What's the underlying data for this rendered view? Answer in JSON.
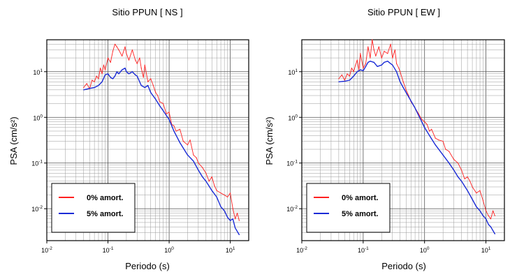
{
  "chart_data": [
    {
      "type": "line",
      "title": "Sitio PPUN [ NS ]",
      "xlabel": "Periodo (s)",
      "ylabel": "PSA (cm/s²)",
      "xscale": "log",
      "yscale": "log",
      "xlim": [
        0.01,
        20
      ],
      "ylim": [
        0.002,
        50
      ],
      "xticks": [
        {
          "base": "10",
          "exp": "-2"
        },
        {
          "base": "10",
          "exp": "-1"
        },
        {
          "base": "10",
          "exp": "0"
        },
        {
          "base": "10",
          "exp": "1"
        }
      ],
      "yticks": [
        {
          "base": "10",
          "exp": "-2"
        },
        {
          "base": "10",
          "exp": "-1"
        },
        {
          "base": "10",
          "exp": "0"
        },
        {
          "base": "10",
          "exp": "1"
        }
      ],
      "grid": true,
      "legend_position": "bottom-left",
      "series": [
        {
          "name": "0% amort.",
          "color": "#ff2020",
          "x": [
            0.04,
            0.045,
            0.05,
            0.055,
            0.06,
            0.065,
            0.07,
            0.075,
            0.08,
            0.085,
            0.09,
            0.1,
            0.11,
            0.12,
            0.13,
            0.14,
            0.15,
            0.17,
            0.19,
            0.2,
            0.22,
            0.25,
            0.28,
            0.3,
            0.33,
            0.35,
            0.38,
            0.4,
            0.45,
            0.5,
            0.55,
            0.6,
            0.65,
            0.7,
            0.8,
            0.9,
            1.0,
            1.1,
            1.2,
            1.3,
            1.5,
            1.7,
            2.0,
            2.2,
            2.5,
            2.8,
            3.0,
            3.5,
            4.0,
            4.5,
            5.0,
            5.5,
            6.0,
            7.0,
            8.0,
            9.0,
            10.0,
            11.0,
            12.0,
            13.0,
            14.0
          ],
          "y": [
            4.5,
            5.5,
            4.2,
            6.5,
            6.0,
            8.0,
            7.0,
            12.0,
            9.0,
            14.0,
            11.0,
            20.0,
            16.0,
            28.0,
            40.0,
            35.0,
            30.0,
            22.0,
            35.0,
            25.0,
            18.0,
            30.0,
            18.0,
            15.0,
            20.0,
            12.0,
            7.5,
            14.0,
            6.0,
            7.0,
            5.0,
            3.5,
            3.0,
            2.2,
            2.0,
            1.2,
            1.3,
            0.7,
            0.65,
            0.5,
            0.55,
            0.3,
            0.25,
            0.32,
            0.15,
            0.13,
            0.1,
            0.08,
            0.06,
            0.04,
            0.05,
            0.032,
            0.025,
            0.022,
            0.02,
            0.018,
            0.022,
            0.01,
            0.006,
            0.008,
            0.0055
          ]
        },
        {
          "name": "5% amort.",
          "color": "#1a2bd6",
          "x": [
            0.04,
            0.05,
            0.06,
            0.07,
            0.08,
            0.09,
            0.1,
            0.11,
            0.12,
            0.13,
            0.14,
            0.15,
            0.17,
            0.19,
            0.2,
            0.22,
            0.25,
            0.28,
            0.3,
            0.35,
            0.4,
            0.45,
            0.5,
            0.6,
            0.7,
            0.8,
            0.9,
            1.0,
            1.2,
            1.5,
            2.0,
            2.5,
            3.0,
            3.5,
            4.0,
            5.0,
            6.0,
            7.0,
            8.0,
            9.0,
            10.0,
            11.0,
            12.0,
            14.0
          ],
          "y": [
            4.0,
            4.3,
            4.5,
            5.0,
            6.0,
            8.5,
            9.0,
            7.5,
            7.0,
            8.0,
            10.0,
            9.0,
            11.0,
            12.0,
            10.0,
            9.0,
            10.0,
            8.5,
            8.0,
            5.0,
            4.5,
            5.0,
            3.5,
            2.5,
            1.8,
            1.4,
            1.1,
            0.9,
            0.5,
            0.28,
            0.15,
            0.11,
            0.07,
            0.05,
            0.04,
            0.025,
            0.018,
            0.011,
            0.009,
            0.0065,
            0.0055,
            0.006,
            0.0038,
            0.0027
          ]
        }
      ]
    },
    {
      "type": "line",
      "title": "Sitio PPUN [ EW ]",
      "xlabel": "Periodo (s)",
      "ylabel": "PSA (cm/s²)",
      "xscale": "log",
      "yscale": "log",
      "xlim": [
        0.01,
        20
      ],
      "ylim": [
        0.002,
        50
      ],
      "xticks": [
        {
          "base": "10",
          "exp": "-2"
        },
        {
          "base": "10",
          "exp": "-1"
        },
        {
          "base": "10",
          "exp": "0"
        },
        {
          "base": "10",
          "exp": "1"
        }
      ],
      "yticks": [
        {
          "base": "10",
          "exp": "-2"
        },
        {
          "base": "10",
          "exp": "-1"
        },
        {
          "base": "10",
          "exp": "0"
        },
        {
          "base": "10",
          "exp": "1"
        }
      ],
      "grid": true,
      "legend_position": "bottom-left",
      "series": [
        {
          "name": "0% amort.",
          "color": "#ff2020",
          "x": [
            0.04,
            0.045,
            0.05,
            0.055,
            0.06,
            0.065,
            0.07,
            0.075,
            0.08,
            0.085,
            0.09,
            0.1,
            0.11,
            0.12,
            0.13,
            0.14,
            0.15,
            0.16,
            0.18,
            0.2,
            0.22,
            0.25,
            0.28,
            0.3,
            0.33,
            0.35,
            0.38,
            0.4,
            0.45,
            0.5,
            0.55,
            0.6,
            0.7,
            0.8,
            0.9,
            1.0,
            1.1,
            1.2,
            1.3,
            1.5,
            1.7,
            2.0,
            2.2,
            2.5,
            3.0,
            3.5,
            4.0,
            4.5,
            5.0,
            5.5,
            6.0,
            7.0,
            8.0,
            9.0,
            10.0,
            11.0,
            12.0,
            13.0,
            14.0
          ],
          "y": [
            7.0,
            8.5,
            6.5,
            9.0,
            8.0,
            12.0,
            10.0,
            14.0,
            18.0,
            11.0,
            25.0,
            12.0,
            15.0,
            35.0,
            20.0,
            50.0,
            30.0,
            22.0,
            35.0,
            20.0,
            28.0,
            25.0,
            40.0,
            20.0,
            30.0,
            15.0,
            12.0,
            10.0,
            6.0,
            4.0,
            3.0,
            2.2,
            1.6,
            1.2,
            0.9,
            0.8,
            0.7,
            0.5,
            0.55,
            0.35,
            0.32,
            0.3,
            0.2,
            0.18,
            0.12,
            0.1,
            0.07,
            0.045,
            0.05,
            0.04,
            0.03,
            0.022,
            0.025,
            0.015,
            0.009,
            0.007,
            0.006,
            0.009,
            0.007
          ]
        },
        {
          "name": "5% amort.",
          "color": "#1a2bd6",
          "x": [
            0.04,
            0.05,
            0.06,
            0.07,
            0.08,
            0.09,
            0.1,
            0.11,
            0.12,
            0.13,
            0.15,
            0.17,
            0.2,
            0.22,
            0.25,
            0.28,
            0.3,
            0.35,
            0.4,
            0.45,
            0.5,
            0.6,
            0.7,
            0.8,
            0.9,
            1.0,
            1.2,
            1.5,
            2.0,
            2.5,
            3.0,
            3.5,
            4.0,
            5.0,
            6.0,
            7.0,
            8.0,
            9.0,
            10.0,
            11.0,
            12.0,
            14.0
          ],
          "y": [
            6.0,
            6.2,
            6.5,
            8.0,
            10.0,
            11.0,
            10.5,
            13.0,
            16.0,
            17.0,
            16.0,
            13.0,
            14.0,
            16.0,
            17.0,
            15.0,
            14.0,
            10.0,
            6.0,
            4.5,
            3.5,
            2.3,
            1.6,
            1.1,
            0.8,
            0.6,
            0.4,
            0.25,
            0.15,
            0.1,
            0.07,
            0.05,
            0.04,
            0.025,
            0.016,
            0.011,
            0.009,
            0.007,
            0.006,
            0.0045,
            0.004,
            0.0028
          ]
        }
      ]
    }
  ]
}
